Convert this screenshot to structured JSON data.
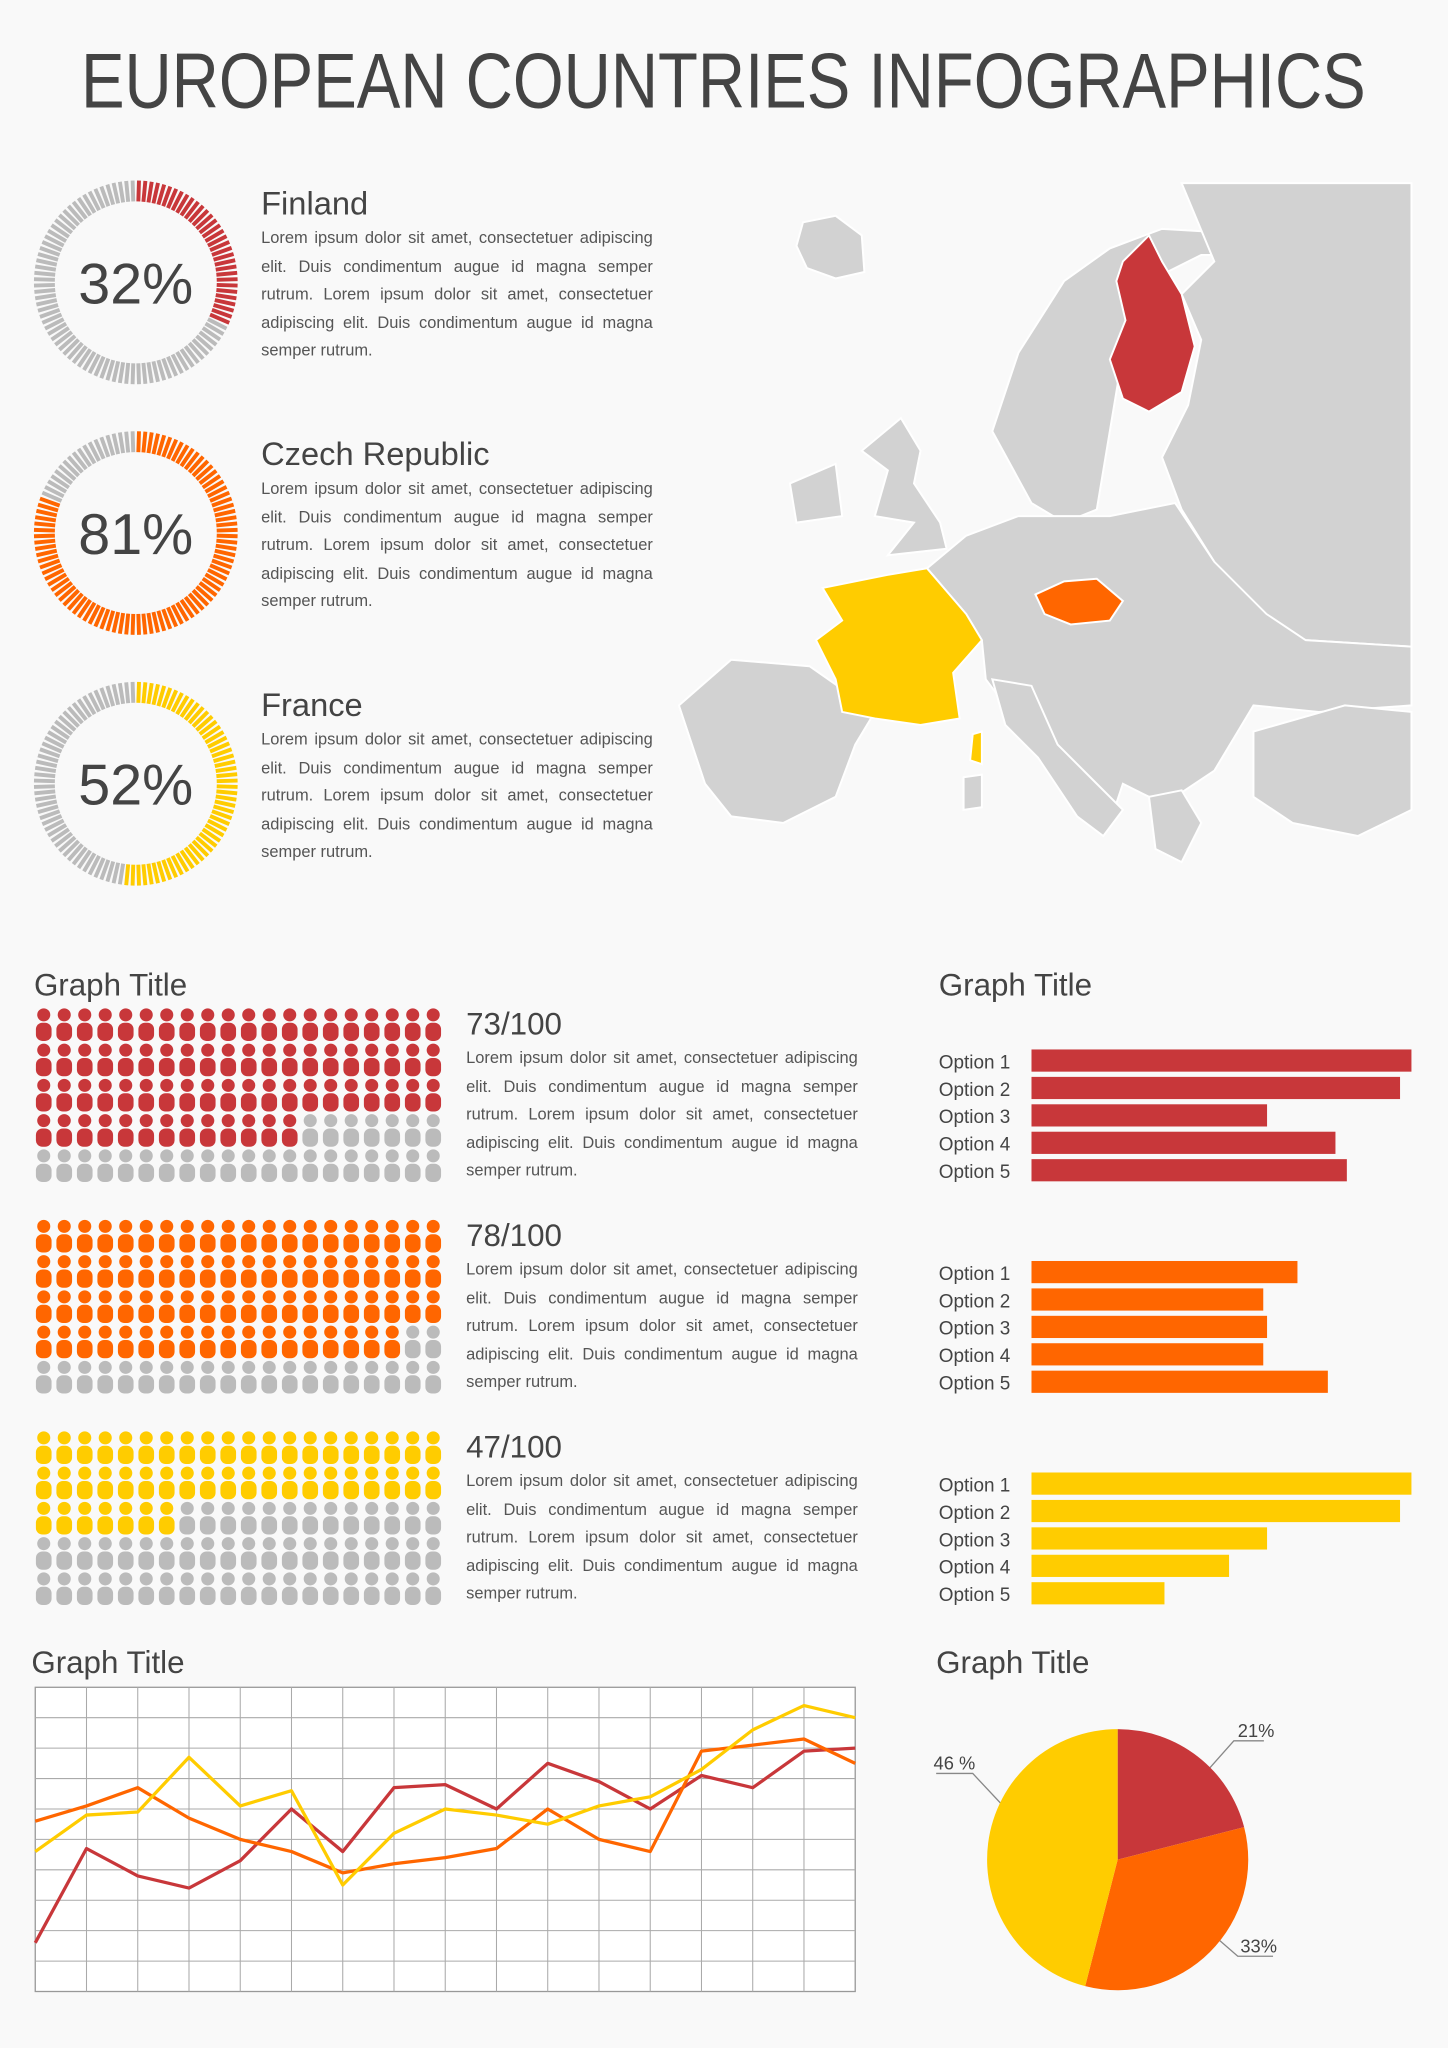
{
  "title": "EUROPEAN COUNTRIES INFOGRAPHICS",
  "chart_data": [
    {
      "type": "donut",
      "title": "Finland",
      "values": [
        32
      ],
      "value_labels": [
        "32%"
      ],
      "ylim": [
        0,
        100
      ],
      "color": "#c8373a",
      "text": "Lorem ipsum dolor sit amet, consectetuer adipiscing elit. Duis condimentum augue id magna semper rutrum. Lorem ipsum dolor sit amet, consectetuer adipiscing elit. Duis condimentum augue id magna semper rutrum."
    },
    {
      "type": "donut",
      "title": "Czech Republic",
      "values": [
        81
      ],
      "value_labels": [
        "81%"
      ],
      "ylim": [
        0,
        100
      ],
      "color": "#ff6600",
      "text": "Lorem ipsum dolor sit amet, consectetuer adipiscing elit. Duis condimentum augue id magna semper rutrum. Lorem ipsum dolor sit amet, consectetuer adipiscing elit. Duis condimentum augue id magna semper rutrum."
    },
    {
      "type": "donut",
      "title": "France",
      "values": [
        52
      ],
      "value_labels": [
        "52%"
      ],
      "ylim": [
        0,
        100
      ],
      "color": "#ffcc00",
      "text": "Lorem ipsum dolor sit amet, consectetuer adipiscing elit. Duis condimentum augue id magna semper rutrum. Lorem ipsum dolor sit amet, consectetuer adipiscing elit. Duis condimentum augue id magna semper rutrum."
    },
    {
      "type": "dots",
      "title": "Graph Title",
      "values": [
        73
      ],
      "value_labels": [
        "73/100"
      ],
      "ylim": [
        0,
        100
      ],
      "color": "#c8373a",
      "text": "Lorem ipsum dolor sit amet, consectetuer adipiscing elit. Duis condimentum augue id magna semper rutrum. Lorem ipsum dolor sit amet, consectetuer adipiscing elit. Duis condimentum augue id magna semper rutrum."
    },
    {
      "type": "dots",
      "values": [
        78
      ],
      "value_labels": [
        "78/100"
      ],
      "ylim": [
        0,
        100
      ],
      "color": "#ff6600",
      "text": "Lorem ipsum dolor sit amet, consectetuer adipiscing elit. Duis condimentum augue id magna semper rutrum. Lorem ipsum dolor sit amet, consectetuer adipiscing elit. Duis condimentum augue id magna semper rutrum."
    },
    {
      "type": "dots",
      "values": [
        47
      ],
      "value_labels": [
        "47/100"
      ],
      "ylim": [
        0,
        100
      ],
      "color": "#ffcc00",
      "text": "Lorem ipsum dolor sit amet, consectetuer adipiscing elit. Duis condimentum augue id magna semper rutrum. Lorem ipsum dolor sit amet, consectetuer adipiscing elit. Duis condimentum augue id magna semper rutrum."
    },
    {
      "type": "bar",
      "orientation": "horizontal",
      "title": "Graph Title",
      "categories": [
        "Option 1",
        "Option 2",
        "Option 3",
        "Option 4",
        "Option 5"
      ],
      "values": [
        100,
        97,
        62,
        80,
        83
      ],
      "xlim": [
        0,
        100
      ],
      "color": "#c8373a"
    },
    {
      "type": "bar",
      "orientation": "horizontal",
      "categories": [
        "Option 1",
        "Option 2",
        "Option 3",
        "Option 4",
        "Option 5"
      ],
      "values": [
        70,
        61,
        62,
        61,
        78
      ],
      "xlim": [
        0,
        100
      ],
      "color": "#ff6600"
    },
    {
      "type": "bar",
      "orientation": "horizontal",
      "categories": [
        "Option 1",
        "Option 2",
        "Option 3",
        "Option 4",
        "Option 5"
      ],
      "values": [
        100,
        97,
        62,
        52,
        35
      ],
      "xlim": [
        0,
        100
      ],
      "color": "#ffcc00"
    },
    {
      "type": "line",
      "title": "Graph Title",
      "categories": [
        null,
        null,
        null,
        null,
        null,
        null,
        null,
        null,
        null,
        null,
        null,
        null,
        null,
        null,
        null,
        null,
        null
      ],
      "ylim": [
        0,
        10
      ],
      "grid": true,
      "series": [
        {
          "color": "#c8373a",
          "values": [
            1.6,
            4.7,
            3.8,
            3.4,
            4.3,
            6.0,
            4.6,
            6.7,
            6.8,
            6.0,
            7.5,
            6.9,
            6.0,
            7.1,
            6.7,
            7.9,
            8.0
          ]
        },
        {
          "color": "#ff6600",
          "values": [
            5.6,
            6.1,
            6.7,
            5.7,
            5.0,
            4.6,
            3.9,
            4.2,
            4.4,
            4.7,
            6.0,
            5.0,
            4.6,
            7.9,
            8.1,
            8.3,
            7.5
          ]
        },
        {
          "color": "#ffcc00",
          "values": [
            4.6,
            5.8,
            5.9,
            7.7,
            6.1,
            6.6,
            3.5,
            5.2,
            6.0,
            5.8,
            5.5,
            6.1,
            6.4,
            7.3,
            8.6,
            9.4,
            9.0
          ]
        }
      ]
    },
    {
      "type": "pie",
      "title": "Graph Title",
      "values": [
        21,
        33,
        46
      ],
      "value_labels": [
        "21%",
        "33%",
        "46 %"
      ],
      "colors": [
        "#c8373a",
        "#ff6600",
        "#ffcc00"
      ]
    }
  ]
}
